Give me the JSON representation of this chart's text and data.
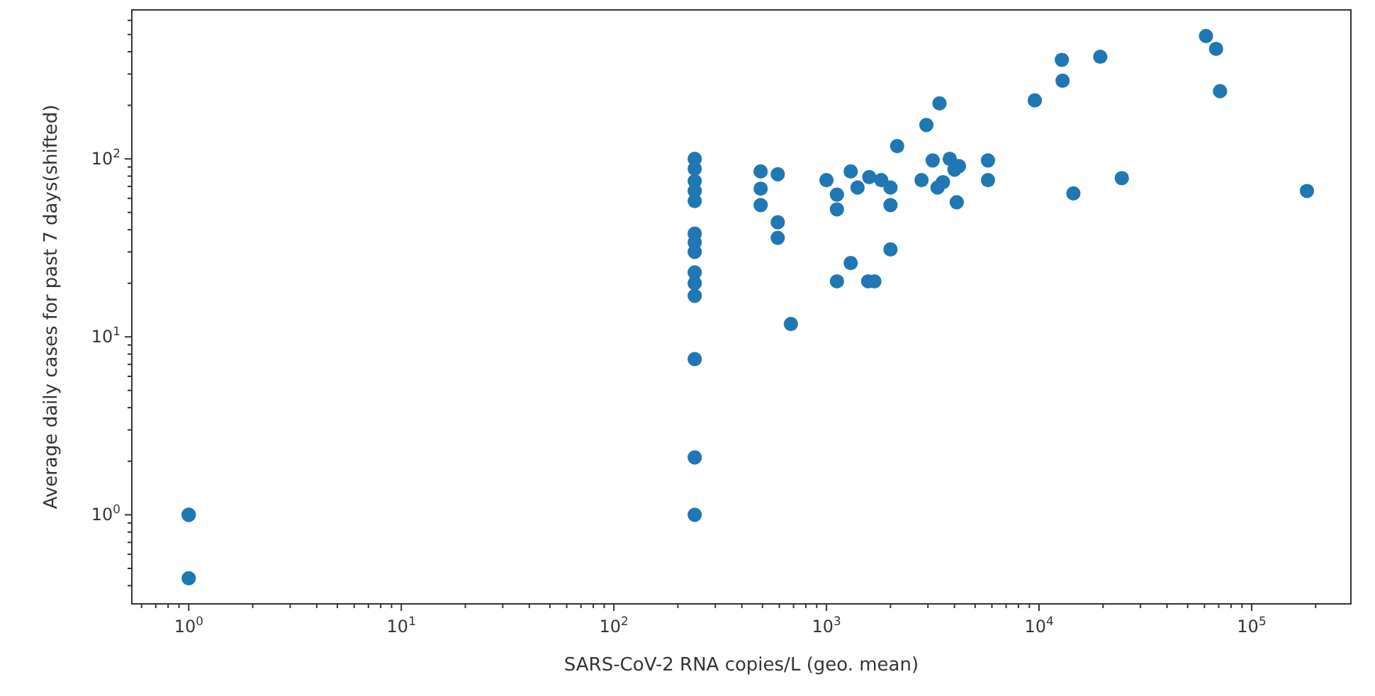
{
  "chart_data": {
    "type": "scatter",
    "xlabel": "SARS-CoV-2 RNA copies/L (geo. mean)",
    "ylabel": "Average daily cases for past 7 days(shifted)",
    "log": "xy",
    "grid": false,
    "marker": "circle",
    "xlim": [
      0.54,
      293000
    ],
    "ylim": [
      0.316,
      687
    ],
    "xticks": [
      {
        "value": 0.6,
        "label": null
      },
      {
        "value": 0.7,
        "label": null
      },
      {
        "value": 0.8,
        "label": null
      },
      {
        "value": 0.9,
        "label": null
      },
      {
        "value": 1,
        "label": "10$^{0}$"
      },
      {
        "value": 2,
        "label": null
      },
      {
        "value": 3,
        "label": null
      },
      {
        "value": 4,
        "label": null
      },
      {
        "value": 5,
        "label": null
      },
      {
        "value": 6,
        "label": null
      },
      {
        "value": 7,
        "label": null
      },
      {
        "value": 8,
        "label": null
      },
      {
        "value": 9,
        "label": null
      },
      {
        "value": 10,
        "label": "10$^{1}$"
      },
      {
        "value": 20,
        "label": null
      },
      {
        "value": 30,
        "label": null
      },
      {
        "value": 40,
        "label": null
      },
      {
        "value": 50,
        "label": null
      },
      {
        "value": 60,
        "label": null
      },
      {
        "value": 70,
        "label": null
      },
      {
        "value": 80,
        "label": null
      },
      {
        "value": 90,
        "label": null
      },
      {
        "value": 100,
        "label": "10$^{2}$"
      },
      {
        "value": 200,
        "label": null
      },
      {
        "value": 300,
        "label": null
      },
      {
        "value": 400,
        "label": null
      },
      {
        "value": 500,
        "label": null
      },
      {
        "value": 600,
        "label": null
      },
      {
        "value": 700,
        "label": null
      },
      {
        "value": 800,
        "label": null
      },
      {
        "value": 900,
        "label": null
      },
      {
        "value": 1000,
        "label": "10$^{3}$"
      },
      {
        "value": 2000,
        "label": null
      },
      {
        "value": 3000,
        "label": null
      },
      {
        "value": 4000,
        "label": null
      },
      {
        "value": 5000,
        "label": null
      },
      {
        "value": 6000,
        "label": null
      },
      {
        "value": 7000,
        "label": null
      },
      {
        "value": 8000,
        "label": null
      },
      {
        "value": 9000,
        "label": null
      },
      {
        "value": 10000,
        "label": "10$^{4}$"
      },
      {
        "value": 20000,
        "label": null
      },
      {
        "value": 30000,
        "label": null
      },
      {
        "value": 40000,
        "label": null
      },
      {
        "value": 50000,
        "label": null
      },
      {
        "value": 60000,
        "label": null
      },
      {
        "value": 70000,
        "label": null
      },
      {
        "value": 80000,
        "label": null
      },
      {
        "value": 90000,
        "label": null
      },
      {
        "value": 100000,
        "label": "10$^{5}$"
      },
      {
        "value": 200000,
        "label": null
      }
    ],
    "yticks": [
      {
        "value": 0.4,
        "label": null
      },
      {
        "value": 0.5,
        "label": null
      },
      {
        "value": 0.6,
        "label": null
      },
      {
        "value": 0.7,
        "label": null
      },
      {
        "value": 0.8,
        "label": null
      },
      {
        "value": 0.9,
        "label": null
      },
      {
        "value": 1,
        "label": "10$^{0}$"
      },
      {
        "value": 2,
        "label": null
      },
      {
        "value": 3,
        "label": null
      },
      {
        "value": 4,
        "label": null
      },
      {
        "value": 5,
        "label": null
      },
      {
        "value": 6,
        "label": null
      },
      {
        "value": 7,
        "label": null
      },
      {
        "value": 8,
        "label": null
      },
      {
        "value": 9,
        "label": null
      },
      {
        "value": 10,
        "label": "10$^{1}$"
      },
      {
        "value": 20,
        "label": null
      },
      {
        "value": 30,
        "label": null
      },
      {
        "value": 40,
        "label": null
      },
      {
        "value": 50,
        "label": null
      },
      {
        "value": 60,
        "label": null
      },
      {
        "value": 70,
        "label": null
      },
      {
        "value": 80,
        "label": null
      },
      {
        "value": 90,
        "label": null
      },
      {
        "value": 100,
        "label": "10$^{2}$"
      },
      {
        "value": 200,
        "label": null
      },
      {
        "value": 300,
        "label": null
      },
      {
        "value": 400,
        "label": null
      },
      {
        "value": 500,
        "label": null
      },
      {
        "value": 600,
        "label": null
      }
    ],
    "series": [
      {
        "color": "#1f77b4",
        "x": [
          1,
          1,
          1,
          240,
          240,
          240,
          240,
          240,
          240,
          240,
          240,
          240,
          240,
          240,
          240,
          240,
          240,
          490,
          590,
          490,
          490,
          590,
          590,
          680,
          1000,
          1120,
          1120,
          1300,
          1400,
          1590,
          1810,
          2000,
          2150,
          2000,
          2000,
          1300,
          1120,
          1570,
          1680,
          2800,
          2950,
          3400,
          3160,
          3800,
          3530,
          4000,
          4200,
          3330,
          4100,
          5750,
          5750,
          9550,
          12800,
          12900,
          19400,
          14500,
          24500,
          61000,
          68000,
          71000,
          182000
        ],
        "values": [
          1.0,
          1.0,
          0.44,
          100,
          88,
          75,
          66,
          58,
          38,
          34,
          30,
          23,
          20,
          17,
          7.5,
          2.1,
          1.0,
          85,
          82,
          68,
          55,
          44,
          36,
          11.8,
          76,
          63,
          52,
          85,
          69,
          79,
          76,
          69,
          118,
          55,
          31,
          26,
          20.5,
          20.5,
          20.5,
          76,
          155,
          205,
          98,
          100,
          74,
          87,
          91,
          69,
          57,
          98,
          76,
          213,
          360,
          275,
          375,
          64,
          78,
          490,
          415,
          240,
          66
        ]
      }
    ]
  }
}
